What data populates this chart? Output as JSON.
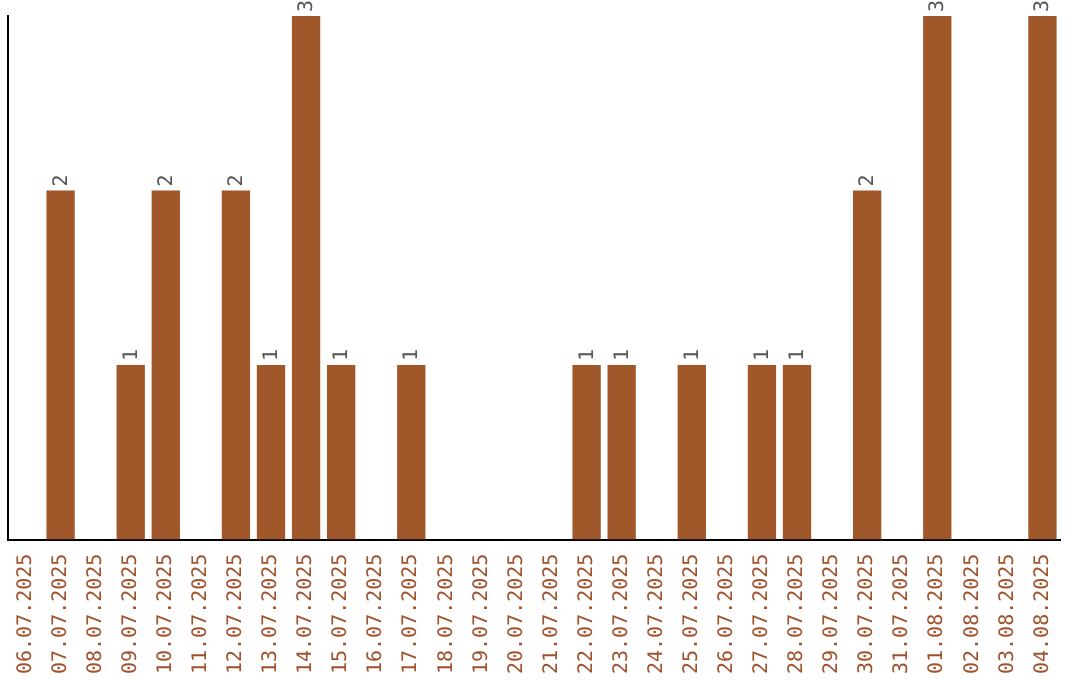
{
  "chart_data": {
    "type": "bar",
    "categories": [
      "06.07.2025",
      "07.07.2025",
      "08.07.2025",
      "09.07.2025",
      "10.07.2025",
      "11.07.2025",
      "12.07.2025",
      "13.07.2025",
      "14.07.2025",
      "15.07.2025",
      "16.07.2025",
      "17.07.2025",
      "18.07.2025",
      "19.07.2025",
      "20.07.2025",
      "21.07.2025",
      "22.07.2025",
      "23.07.2025",
      "24.07.2025",
      "25.07.2025",
      "26.07.2025",
      "27.07.2025",
      "28.07.2025",
      "29.07.2025",
      "30.07.2025",
      "31.07.2025",
      "01.08.2025",
      "02.08.2025",
      "03.08.2025",
      "04.08.2025"
    ],
    "values": [
      0,
      2,
      0,
      1,
      2,
      0,
      2,
      1,
      3,
      1,
      0,
      1,
      0,
      0,
      0,
      0,
      1,
      1,
      0,
      1,
      0,
      1,
      1,
      0,
      2,
      0,
      3,
      0,
      0,
      3
    ],
    "value_labels": [
      null,
      "2",
      null,
      "1",
      "2",
      null,
      "2",
      "1",
      "3",
      "1",
      null,
      "1",
      null,
      null,
      null,
      null,
      "1",
      "1",
      null,
      "1",
      null,
      "1",
      "1",
      null,
      "2",
      null,
      "3",
      null,
      null,
      "3"
    ],
    "color": "#a0582a",
    "grid": false,
    "legend": false,
    "tick_labels": "x"
  }
}
